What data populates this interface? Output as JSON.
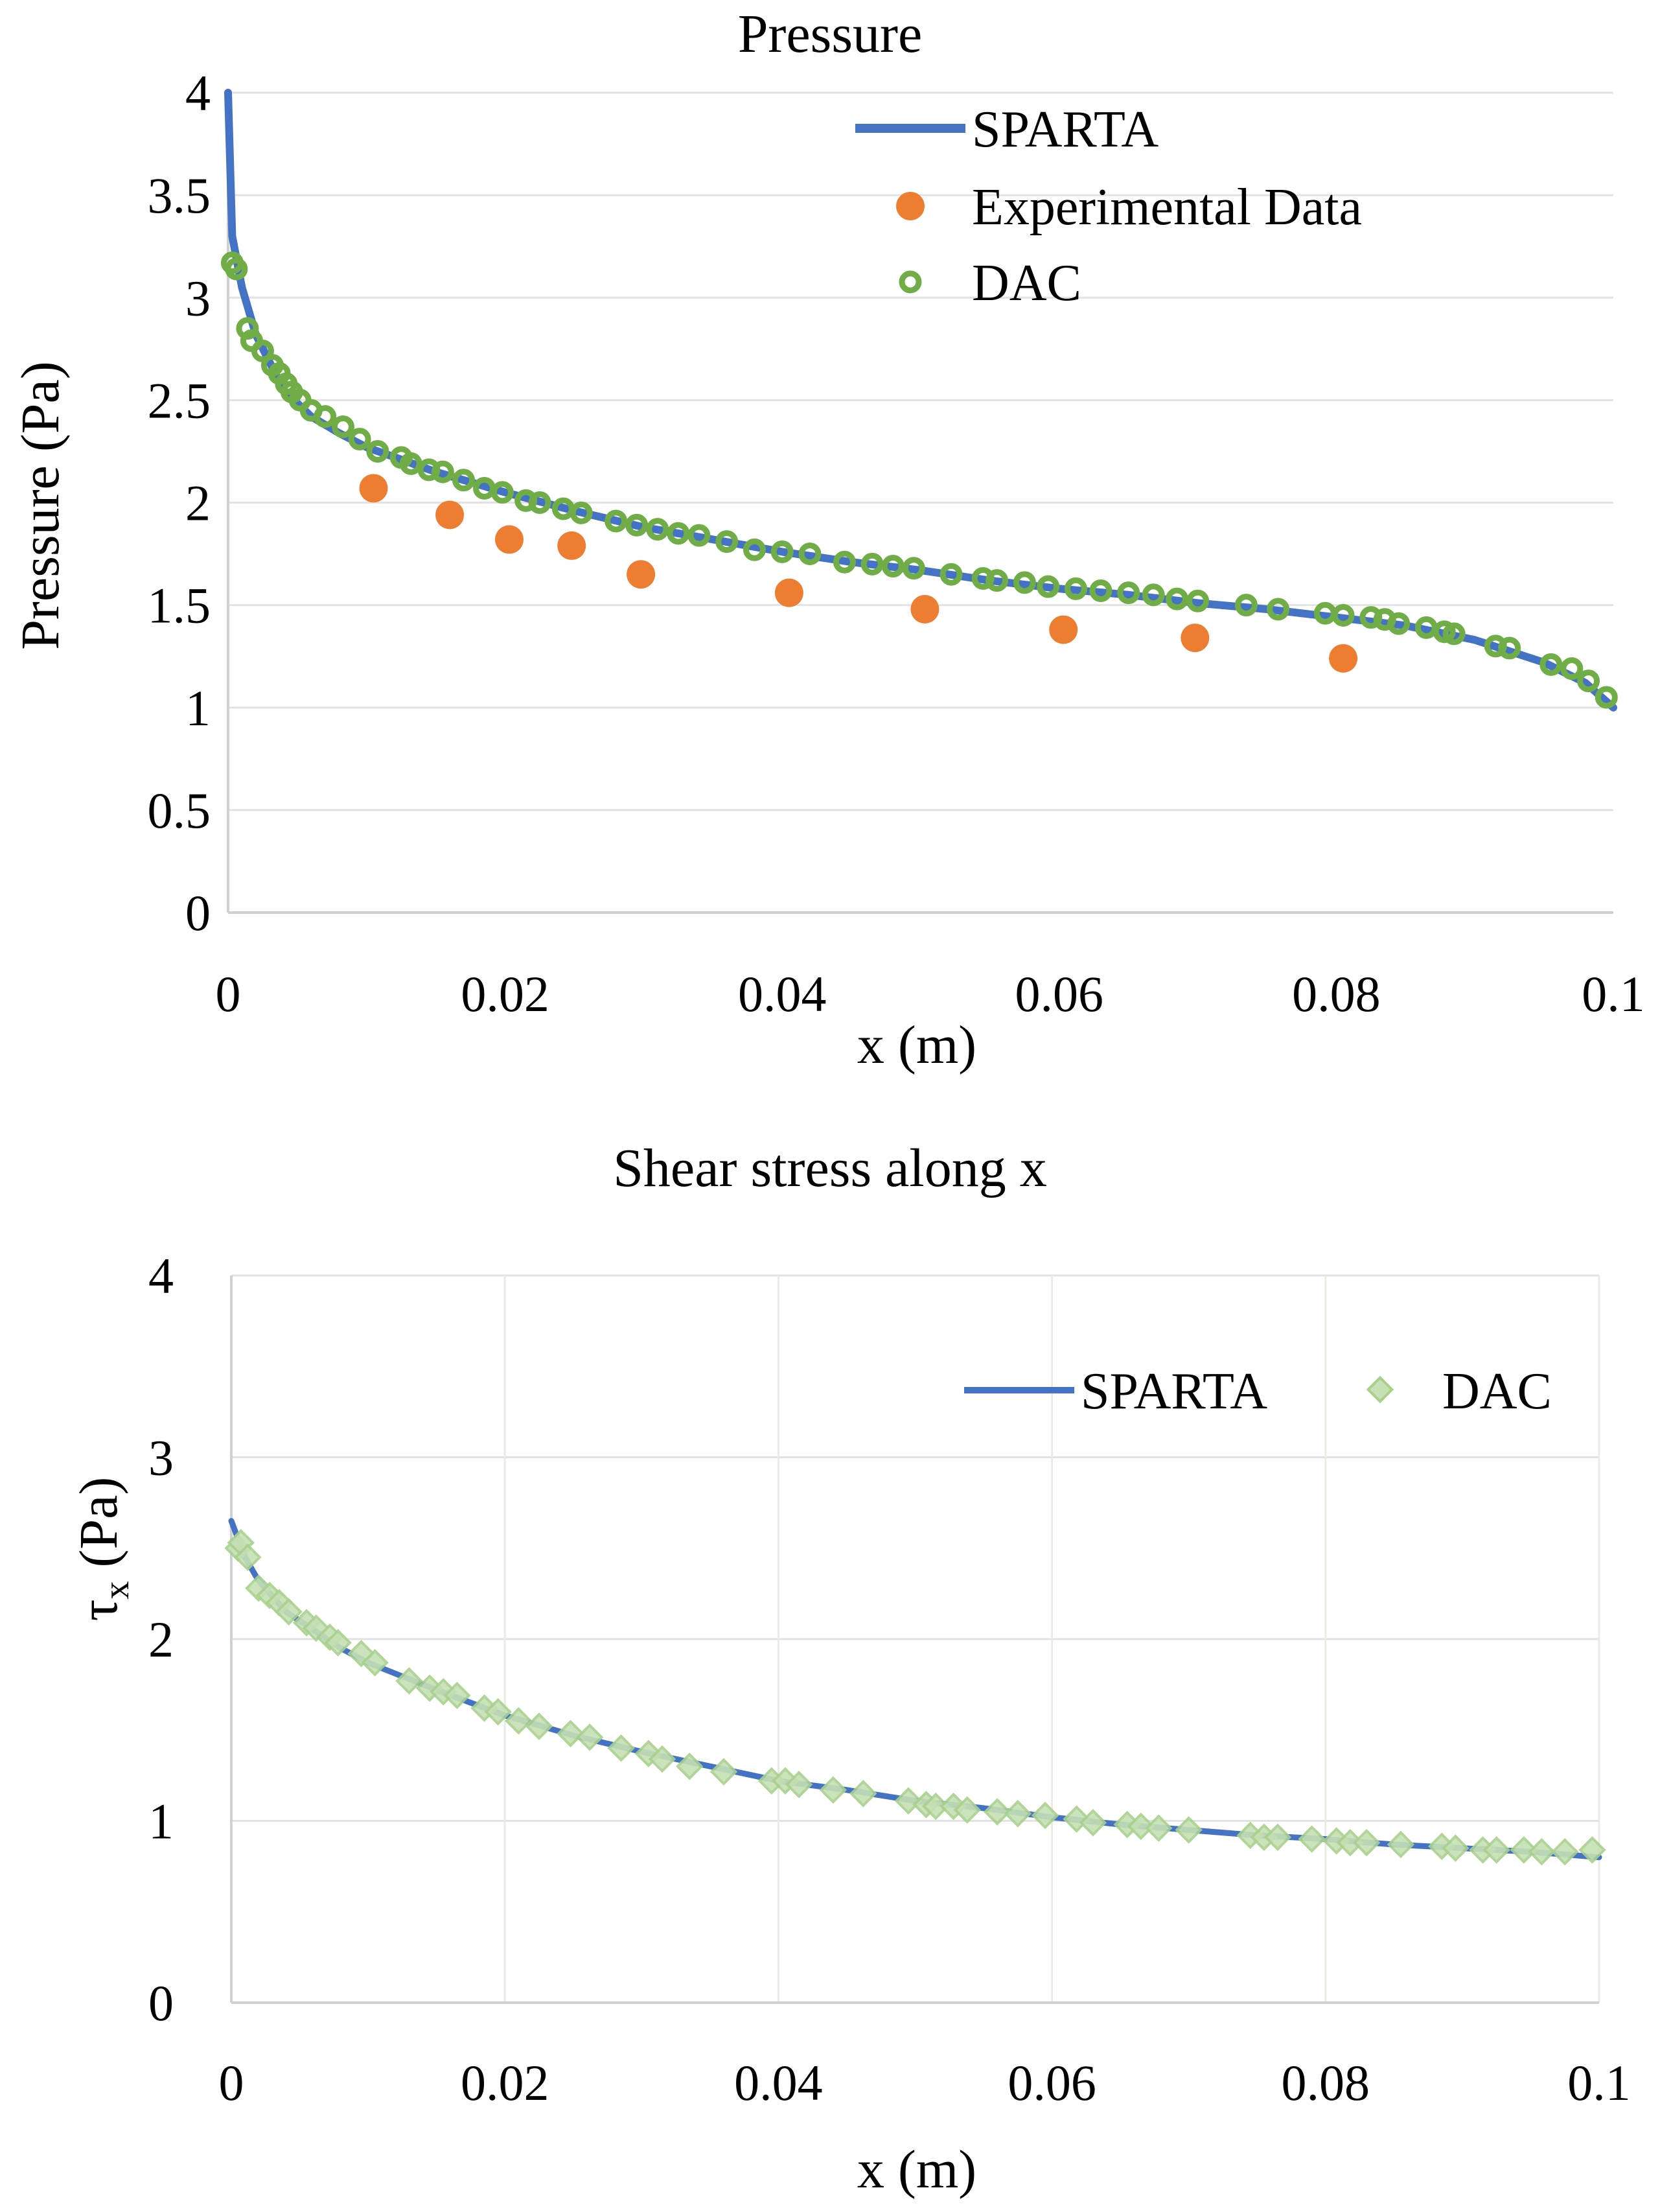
{
  "chart_data": [
    {
      "type": "line",
      "title": "Pressure",
      "xlabel": "x (m)",
      "ylabel": "Pressure (Pa)",
      "xlim": [
        0,
        0.1
      ],
      "ylim": [
        0,
        4
      ],
      "xticks": [
        "0",
        "0.02",
        "0.04",
        "0.06",
        "0.08",
        "0.1"
      ],
      "yticks": [
        "0",
        "0.5",
        "1",
        "1.5",
        "2",
        "2.5",
        "3",
        "3.5",
        "4"
      ],
      "grid": true,
      "legend_position": "top-right",
      "series": [
        {
          "name": "SPARTA",
          "style": "line",
          "color": "#4472C4",
          "points": [
            [
              0.0,
              4.0
            ],
            [
              0.0003,
              3.3
            ],
            [
              0.001,
              3.05
            ],
            [
              0.002,
              2.82
            ],
            [
              0.004,
              2.55
            ],
            [
              0.006,
              2.42
            ],
            [
              0.008,
              2.34
            ],
            [
              0.01,
              2.27
            ],
            [
              0.015,
              2.15
            ],
            [
              0.02,
              2.05
            ],
            [
              0.025,
              1.96
            ],
            [
              0.03,
              1.88
            ],
            [
              0.035,
              1.82
            ],
            [
              0.04,
              1.76
            ],
            [
              0.045,
              1.71
            ],
            [
              0.05,
              1.67
            ],
            [
              0.055,
              1.62
            ],
            [
              0.06,
              1.58
            ],
            [
              0.065,
              1.55
            ],
            [
              0.07,
              1.51
            ],
            [
              0.075,
              1.48
            ],
            [
              0.08,
              1.44
            ],
            [
              0.085,
              1.4
            ],
            [
              0.09,
              1.33
            ],
            [
              0.095,
              1.22
            ],
            [
              0.098,
              1.12
            ],
            [
              0.1,
              1.0
            ]
          ]
        },
        {
          "name": "Experimental Data",
          "style": "marker-circle",
          "color": "#ED7D31",
          "points": [
            [
              0.0105,
              2.07
            ],
            [
              0.016,
              1.94
            ],
            [
              0.0203,
              1.82
            ],
            [
              0.0248,
              1.79
            ],
            [
              0.0298,
              1.65
            ],
            [
              0.0405,
              1.56
            ],
            [
              0.0503,
              1.48
            ],
            [
              0.0603,
              1.38
            ],
            [
              0.0698,
              1.34
            ],
            [
              0.0805,
              1.24
            ]
          ]
        },
        {
          "name": "DAC",
          "style": "marker-ring",
          "color": "#70AD47",
          "points": [
            [
              0.0003,
              3.17
            ],
            [
              0.0006,
              3.14
            ],
            [
              0.0014,
              2.85
            ],
            [
              0.0017,
              2.79
            ],
            [
              0.0025,
              2.74
            ],
            [
              0.0032,
              2.67
            ],
            [
              0.0037,
              2.63
            ],
            [
              0.0042,
              2.58
            ],
            [
              0.0046,
              2.54
            ],
            [
              0.0052,
              2.5
            ],
            [
              0.006,
              2.45
            ],
            [
              0.007,
              2.42
            ],
            [
              0.0083,
              2.37
            ],
            [
              0.0095,
              2.31
            ],
            [
              0.0108,
              2.25
            ],
            [
              0.0125,
              2.22
            ],
            [
              0.0132,
              2.19
            ],
            [
              0.0145,
              2.16
            ],
            [
              0.0155,
              2.15
            ],
            [
              0.017,
              2.11
            ],
            [
              0.0185,
              2.07
            ],
            [
              0.0198,
              2.05
            ],
            [
              0.0215,
              2.01
            ],
            [
              0.0225,
              2.0
            ],
            [
              0.0242,
              1.97
            ],
            [
              0.0255,
              1.95
            ],
            [
              0.028,
              1.91
            ],
            [
              0.0295,
              1.89
            ],
            [
              0.031,
              1.87
            ],
            [
              0.0325,
              1.85
            ],
            [
              0.034,
              1.84
            ],
            [
              0.036,
              1.81
            ],
            [
              0.038,
              1.77
            ],
            [
              0.04,
              1.76
            ],
            [
              0.042,
              1.75
            ],
            [
              0.0445,
              1.71
            ],
            [
              0.0465,
              1.7
            ],
            [
              0.048,
              1.69
            ],
            [
              0.0495,
              1.68
            ],
            [
              0.0522,
              1.65
            ],
            [
              0.0545,
              1.63
            ],
            [
              0.0555,
              1.62
            ],
            [
              0.0575,
              1.61
            ],
            [
              0.0592,
              1.59
            ],
            [
              0.0612,
              1.58
            ],
            [
              0.063,
              1.57
            ],
            [
              0.065,
              1.56
            ],
            [
              0.0668,
              1.55
            ],
            [
              0.0685,
              1.53
            ],
            [
              0.07,
              1.52
            ],
            [
              0.0735,
              1.5
            ],
            [
              0.0758,
              1.48
            ],
            [
              0.0792,
              1.46
            ],
            [
              0.0805,
              1.45
            ],
            [
              0.0825,
              1.44
            ],
            [
              0.0835,
              1.43
            ],
            [
              0.0845,
              1.41
            ],
            [
              0.0865,
              1.39
            ],
            [
              0.0878,
              1.37
            ],
            [
              0.0885,
              1.36
            ],
            [
              0.0915,
              1.3
            ],
            [
              0.0925,
              1.29
            ],
            [
              0.0955,
              1.21
            ],
            [
              0.097,
              1.19
            ],
            [
              0.0982,
              1.13
            ],
            [
              0.0995,
              1.05
            ]
          ]
        }
      ]
    },
    {
      "type": "line",
      "title": "Shear stress along x",
      "xlabel": "x (m)",
      "ylabel_main": "τ",
      "ylabel_sub": "x",
      "ylabel_unit": " (Pa)",
      "xlim": [
        0,
        0.1
      ],
      "ylim": [
        0,
        4
      ],
      "xticks": [
        "0",
        "0.02",
        "0.04",
        "0.06",
        "0.08",
        "0.1"
      ],
      "yticks": [
        "0",
        "1",
        "2",
        "3",
        "4"
      ],
      "grid": true,
      "legend_position": "top-right",
      "series": [
        {
          "name": "SPARTA",
          "style": "line",
          "color": "#4472C4",
          "points": [
            [
              0.0,
              2.65
            ],
            [
              0.001,
              2.45
            ],
            [
              0.002,
              2.32
            ],
            [
              0.004,
              2.15
            ],
            [
              0.006,
              2.05
            ],
            [
              0.008,
              1.95
            ],
            [
              0.01,
              1.87
            ],
            [
              0.015,
              1.72
            ],
            [
              0.02,
              1.58
            ],
            [
              0.025,
              1.47
            ],
            [
              0.03,
              1.38
            ],
            [
              0.035,
              1.3
            ],
            [
              0.04,
              1.22
            ],
            [
              0.045,
              1.17
            ],
            [
              0.05,
              1.11
            ],
            [
              0.055,
              1.07
            ],
            [
              0.06,
              1.02
            ],
            [
              0.065,
              0.98
            ],
            [
              0.07,
              0.95
            ],
            [
              0.075,
              0.92
            ],
            [
              0.08,
              0.9
            ],
            [
              0.085,
              0.87
            ],
            [
              0.09,
              0.85
            ],
            [
              0.095,
              0.83
            ],
            [
              0.1,
              0.8
            ]
          ]
        },
        {
          "name": "DAC",
          "style": "marker-diamond",
          "color": "#A9D18E",
          "points": [
            [
              0.0005,
              2.5
            ],
            [
              0.0007,
              2.53
            ],
            [
              0.0012,
              2.45
            ],
            [
              0.002,
              2.28
            ],
            [
              0.0028,
              2.24
            ],
            [
              0.0035,
              2.2
            ],
            [
              0.0042,
              2.15
            ],
            [
              0.0055,
              2.09
            ],
            [
              0.0062,
              2.06
            ],
            [
              0.0072,
              2.01
            ],
            [
              0.0078,
              1.98
            ],
            [
              0.0095,
              1.92
            ],
            [
              0.0105,
              1.87
            ],
            [
              0.013,
              1.77
            ],
            [
              0.0145,
              1.73
            ],
            [
              0.0155,
              1.71
            ],
            [
              0.0165,
              1.69
            ],
            [
              0.0185,
              1.62
            ],
            [
              0.0195,
              1.6
            ],
            [
              0.021,
              1.55
            ],
            [
              0.0225,
              1.52
            ],
            [
              0.0248,
              1.48
            ],
            [
              0.0262,
              1.46
            ],
            [
              0.0285,
              1.4
            ],
            [
              0.0305,
              1.37
            ],
            [
              0.0315,
              1.34
            ],
            [
              0.0335,
              1.3
            ],
            [
              0.036,
              1.27
            ],
            [
              0.0395,
              1.22
            ],
            [
              0.0405,
              1.22
            ],
            [
              0.0415,
              1.2
            ],
            [
              0.044,
              1.17
            ],
            [
              0.0462,
              1.15
            ],
            [
              0.0495,
              1.11
            ],
            [
              0.0508,
              1.09
            ],
            [
              0.0515,
              1.08
            ],
            [
              0.0528,
              1.08
            ],
            [
              0.0538,
              1.06
            ],
            [
              0.056,
              1.05
            ],
            [
              0.0575,
              1.04
            ],
            [
              0.0595,
              1.03
            ],
            [
              0.0618,
              1.01
            ],
            [
              0.063,
              0.99
            ],
            [
              0.0655,
              0.98
            ],
            [
              0.0665,
              0.97
            ],
            [
              0.0678,
              0.96
            ],
            [
              0.07,
              0.95
            ],
            [
              0.0745,
              0.92
            ],
            [
              0.0755,
              0.91
            ],
            [
              0.0765,
              0.91
            ],
            [
              0.079,
              0.9
            ],
            [
              0.0808,
              0.89
            ],
            [
              0.0818,
              0.88
            ],
            [
              0.083,
              0.88
            ],
            [
              0.0855,
              0.87
            ],
            [
              0.0885,
              0.86
            ],
            [
              0.0895,
              0.85
            ],
            [
              0.0915,
              0.84
            ],
            [
              0.0925,
              0.84
            ],
            [
              0.0945,
              0.84
            ],
            [
              0.0958,
              0.83
            ],
            [
              0.0975,
              0.83
            ],
            [
              0.0995,
              0.84
            ]
          ]
        }
      ]
    }
  ]
}
